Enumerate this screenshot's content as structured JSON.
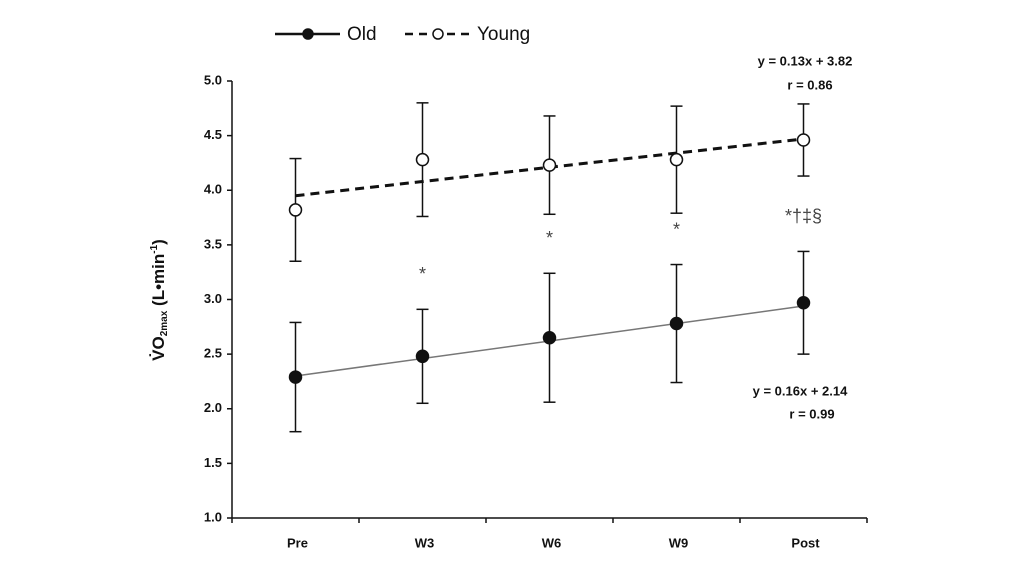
{
  "chart_data": {
    "type": "line",
    "categories": [
      "Pre",
      "W3",
      "W6",
      "W9",
      "Post"
    ],
    "ylim": [
      1,
      5
    ],
    "yticks": [
      {
        "value": 1,
        "label": "1.0"
      },
      1.5,
      {
        "value": 2,
        "label": "2.0"
      },
      2.5,
      {
        "value": 3,
        "label": "3.0"
      },
      3.5,
      {
        "value": 4,
        "label": "4.0"
      },
      4.5,
      {
        "value": 5,
        "label": "5.0"
      }
    ],
    "ylabel": {
      "main": "V̇O",
      "sub": "2max",
      "unit": " (L•min",
      "sup": "-1",
      "close": ")"
    },
    "series": [
      {
        "name": "Old",
        "color": "#111111",
        "marker": "filled",
        "line_style": "solid",
        "line_color": "#777777",
        "values": [
          2.29,
          2.48,
          2.65,
          2.78,
          2.97
        ],
        "errors": [
          0.5,
          0.43,
          0.59,
          0.54,
          0.47
        ],
        "annotations": [
          null,
          "*",
          "*",
          "*",
          "*†‡§"
        ],
        "fit": {
          "slope": 0.16,
          "intercept": 2.14,
          "label": "y = 0.16x + 2.14",
          "r": 0.99,
          "r_label": "r = 0.99"
        }
      },
      {
        "name": "Young",
        "color": "#111111",
        "marker": "open",
        "line_style": "dashed",
        "line_color": "#111111",
        "values": [
          3.82,
          4.28,
          4.23,
          4.28,
          4.46
        ],
        "errors": [
          0.47,
          0.52,
          0.45,
          0.49,
          0.33
        ],
        "annotations": [
          null,
          null,
          null,
          null,
          null
        ],
        "fit": {
          "slope": 0.13,
          "intercept": 3.82,
          "label": "y = 0.13x + 3.82",
          "r": 0.86,
          "r_label": "r = 0.86"
        }
      }
    ]
  }
}
